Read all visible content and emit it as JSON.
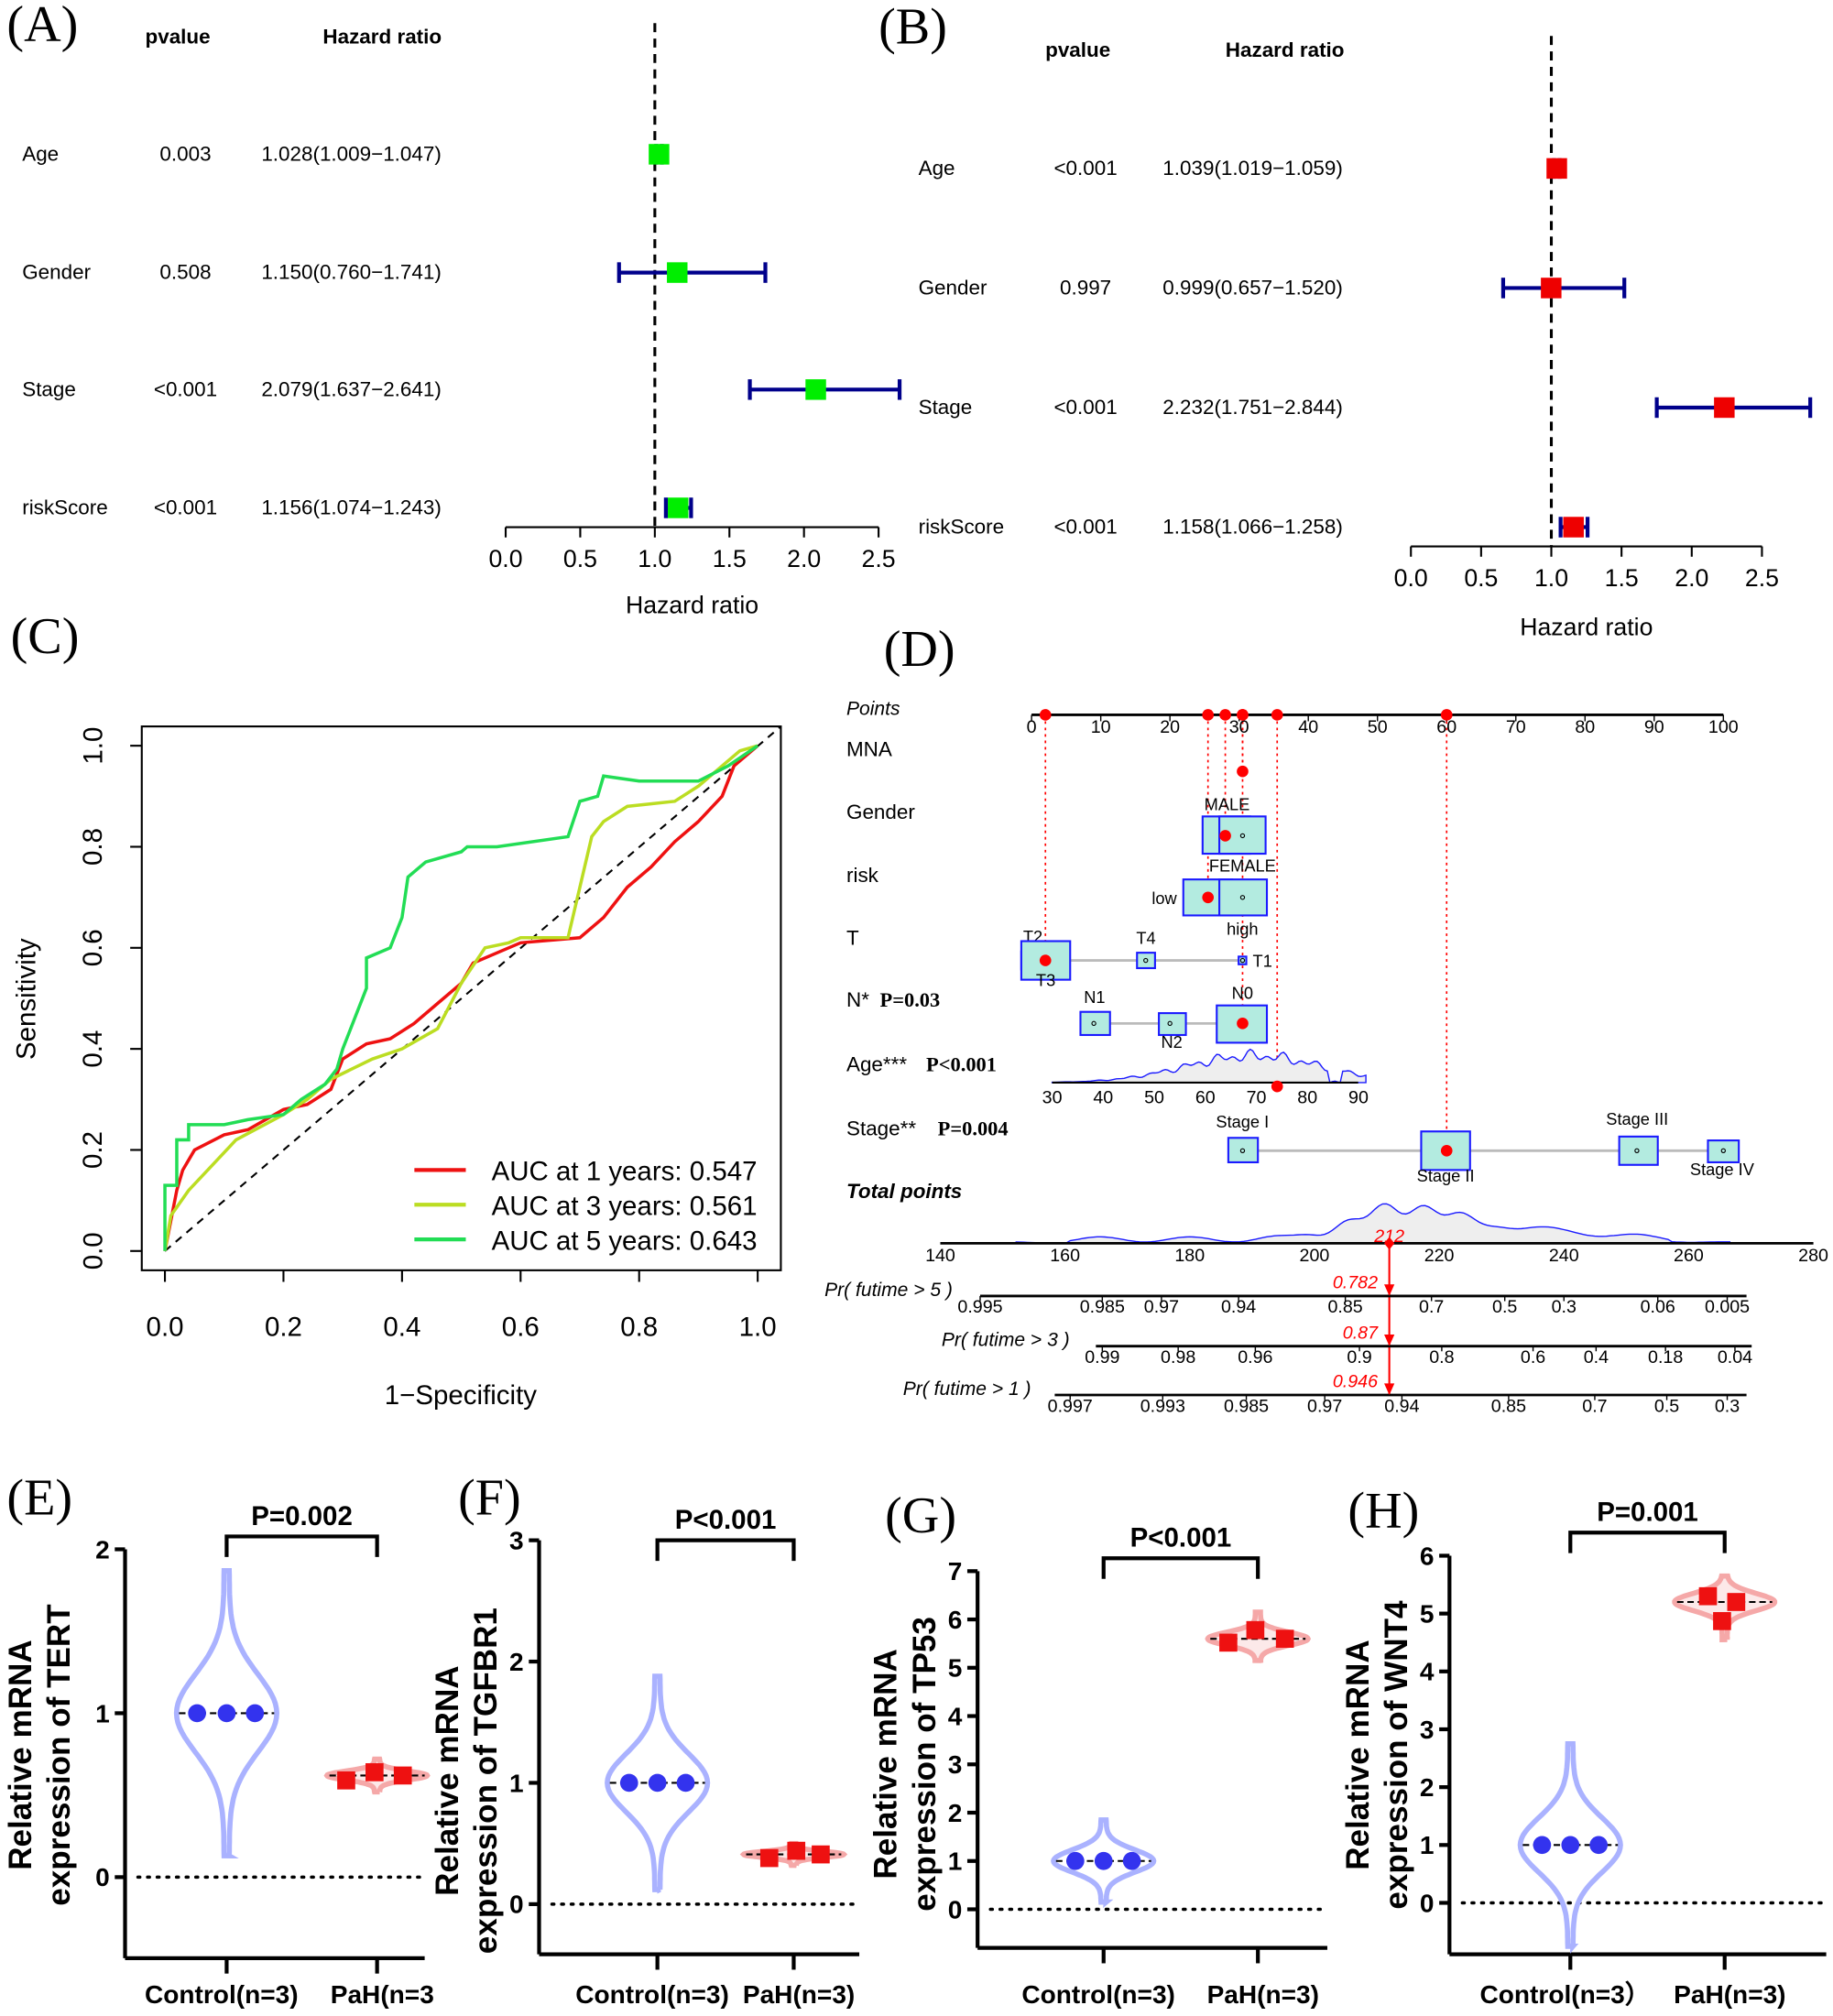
{
  "chart_data": [
    {
      "panel": "(A)",
      "type": "forest",
      "header": {
        "pvalue": "pvalue",
        "hr": "Hazard ratio"
      },
      "rows": [
        {
          "name": "Age",
          "pvalue": "0.003",
          "hr_text": "1.028(1.009−1.047)",
          "hr": 1.028,
          "lo": 1.009,
          "hi": 1.047
        },
        {
          "name": "Gender",
          "pvalue": "0.508",
          "hr_text": "1.150(0.760−1.741)",
          "hr": 1.15,
          "lo": 0.76,
          "hi": 1.741
        },
        {
          "name": "Stage",
          "pvalue": "<0.001",
          "hr_text": "2.079(1.637−2.641)",
          "hr": 2.079,
          "lo": 1.637,
          "hi": 2.641
        },
        {
          "name": "riskScore",
          "pvalue": "<0.001",
          "hr_text": "1.156(1.074−1.243)",
          "hr": 1.156,
          "lo": 1.074,
          "hi": 1.243
        }
      ],
      "xlabel": "Hazard ratio",
      "xticks": [
        "0.0",
        "0.5",
        "1.0",
        "1.5",
        "2.0",
        "2.5"
      ],
      "xlim": [
        0,
        2.5
      ],
      "reference": 1,
      "marker_color": "#00ee00",
      "ci_color": "#00008b"
    },
    {
      "panel": "(B)",
      "type": "forest",
      "header": {
        "pvalue": "pvalue",
        "hr": "Hazard ratio"
      },
      "rows": [
        {
          "name": "Age",
          "pvalue": "<0.001",
          "hr_text": "1.039(1.019−1.059)",
          "hr": 1.039,
          "lo": 1.019,
          "hi": 1.059
        },
        {
          "name": "Gender",
          "pvalue": "0.997",
          "hr_text": "0.999(0.657−1.520)",
          "hr": 0.999,
          "lo": 0.657,
          "hi": 1.52
        },
        {
          "name": "Stage",
          "pvalue": "<0.001",
          "hr_text": "2.232(1.751−2.844)",
          "hr": 2.232,
          "lo": 1.751,
          "hi": 2.844
        },
        {
          "name": "riskScore",
          "pvalue": "<0.001",
          "hr_text": "1.158(1.066−1.258)",
          "hr": 1.158,
          "lo": 1.066,
          "hi": 1.258
        }
      ],
      "xlabel": "Hazard ratio",
      "xticks": [
        "0.0",
        "0.5",
        "1.0",
        "1.5",
        "2.0",
        "2.5"
      ],
      "xlim": [
        0,
        2.5
      ],
      "reference": 1,
      "marker_color": "#ee0000",
      "ci_color": "#00008b"
    },
    {
      "panel": "(C)",
      "type": "line",
      "xlabel": "1−Specificity",
      "ylabel": "Sensitivity",
      "xlim": [
        0,
        1
      ],
      "ylim": [
        0,
        1
      ],
      "xticks": [
        "0.0",
        "0.2",
        "0.4",
        "0.6",
        "0.8",
        "1.0"
      ],
      "yticks": [
        "0.0",
        "0.2",
        "0.4",
        "0.6",
        "0.8",
        "1.0"
      ],
      "legend_position": "bottom-right",
      "series": [
        {
          "name": "AUC at 1 years: 0.547",
          "color": "#ee1111",
          "points": [
            [
              0,
              0
            ],
            [
              0.02,
              0.12
            ],
            [
              0.03,
              0.16
            ],
            [
              0.05,
              0.2
            ],
            [
              0.1,
              0.23
            ],
            [
              0.14,
              0.24
            ],
            [
              0.2,
              0.28
            ],
            [
              0.24,
              0.29
            ],
            [
              0.28,
              0.32
            ],
            [
              0.3,
              0.38
            ],
            [
              0.34,
              0.41
            ],
            [
              0.38,
              0.42
            ],
            [
              0.42,
              0.45
            ],
            [
              0.46,
              0.49
            ],
            [
              0.5,
              0.53
            ],
            [
              0.52,
              0.57
            ],
            [
              0.58,
              0.6
            ],
            [
              0.6,
              0.61
            ],
            [
              0.7,
              0.62
            ],
            [
              0.74,
              0.66
            ],
            [
              0.78,
              0.72
            ],
            [
              0.82,
              0.76
            ],
            [
              0.86,
              0.81
            ],
            [
              0.9,
              0.85
            ],
            [
              0.94,
              0.9
            ],
            [
              0.96,
              0.96
            ],
            [
              1,
              1
            ]
          ]
        },
        {
          "name": "AUC at 3 years: 0.561",
          "color": "#bbdd22",
          "points": [
            [
              0,
              0
            ],
            [
              0.01,
              0.07
            ],
            [
              0.04,
              0.12
            ],
            [
              0.08,
              0.17
            ],
            [
              0.12,
              0.22
            ],
            [
              0.2,
              0.27
            ],
            [
              0.24,
              0.3
            ],
            [
              0.28,
              0.34
            ],
            [
              0.35,
              0.38
            ],
            [
              0.4,
              0.4
            ],
            [
              0.46,
              0.44
            ],
            [
              0.5,
              0.53
            ],
            [
              0.54,
              0.6
            ],
            [
              0.58,
              0.61
            ],
            [
              0.6,
              0.62
            ],
            [
              0.68,
              0.62
            ],
            [
              0.7,
              0.72
            ],
            [
              0.72,
              0.82
            ],
            [
              0.74,
              0.85
            ],
            [
              0.78,
              0.88
            ],
            [
              0.86,
              0.89
            ],
            [
              0.9,
              0.92
            ],
            [
              0.94,
              0.96
            ],
            [
              0.97,
              0.99
            ],
            [
              1,
              1
            ]
          ]
        },
        {
          "name": "AUC at 5 years: 0.643",
          "color": "#22dd55",
          "points": [
            [
              0,
              0
            ],
            [
              0,
              0.13
            ],
            [
              0.02,
              0.13
            ],
            [
              0.02,
              0.22
            ],
            [
              0.04,
              0.22
            ],
            [
              0.04,
              0.25
            ],
            [
              0.1,
              0.25
            ],
            [
              0.14,
              0.26
            ],
            [
              0.2,
              0.27
            ],
            [
              0.23,
              0.3
            ],
            [
              0.27,
              0.33
            ],
            [
              0.29,
              0.36
            ],
            [
              0.3,
              0.4
            ],
            [
              0.31,
              0.43
            ],
            [
              0.32,
              0.46
            ],
            [
              0.34,
              0.52
            ],
            [
              0.34,
              0.58
            ],
            [
              0.38,
              0.6
            ],
            [
              0.4,
              0.66
            ],
            [
              0.41,
              0.74
            ],
            [
              0.44,
              0.77
            ],
            [
              0.5,
              0.79
            ],
            [
              0.51,
              0.8
            ],
            [
              0.56,
              0.8
            ],
            [
              0.68,
              0.82
            ],
            [
              0.7,
              0.89
            ],
            [
              0.73,
              0.9
            ],
            [
              0.74,
              0.94
            ],
            [
              0.8,
              0.93
            ],
            [
              0.9,
              0.93
            ],
            [
              0.95,
              0.96
            ],
            [
              1,
              1
            ]
          ]
        }
      ]
    },
    {
      "panel": "(D)",
      "type": "nomogram",
      "points_label": "Points",
      "points_ticks": [
        "0",
        "10",
        "20",
        "30",
        "40",
        "50",
        "60",
        "70",
        "80",
        "90",
        "100"
      ],
      "variables": [
        {
          "name": "MNA",
          "p": "",
          "selected_points": 30.5
        },
        {
          "name": "Gender",
          "p": "",
          "levels": [
            {
              "label": "MALE",
              "points": 28
            },
            {
              "label": "FEMALE",
              "points": 30.5
            }
          ],
          "selected": "MALE",
          "selected_points": 28
        },
        {
          "name": "risk",
          "p": "",
          "levels": [
            {
              "label": "low",
              "points": 25.5
            },
            {
              "label": "high",
              "points": 30.5
            }
          ],
          "selected": "low",
          "selected_points": 25.5
        },
        {
          "name": "T",
          "p": "",
          "levels": [
            {
              "label": "T2",
              "points": 0
            },
            {
              "label": "T3",
              "points": 2
            },
            {
              "label": "T4",
              "points": 16.5
            },
            {
              "label": "T1",
              "points": 30.5
            }
          ],
          "selected": "T3",
          "selected_points": 2
        },
        {
          "name": "N*",
          "p": "P=0.03",
          "levels": [
            {
              "label": "N1",
              "points": 9
            },
            {
              "label": "N2",
              "points": 20
            },
            {
              "label": "N0",
              "points": 30.5
            }
          ],
          "selected": "N0",
          "selected_points": 30.5
        },
        {
          "name": "Age***",
          "p": "P<0.001",
          "axis_ticks": [
            "30",
            "40",
            "50",
            "60",
            "70",
            "80",
            "90"
          ],
          "selected": 74,
          "selected_points": 35.5
        },
        {
          "name": "Stage**",
          "p": "P=0.004",
          "levels": [
            {
              "label": "Stage I",
              "points": 30.5
            },
            {
              "label": "Stage II",
              "points": 60
            },
            {
              "label": "Stage III",
              "points": 87.5
            },
            {
              "label": "Stage IV",
              "points": 100
            }
          ],
          "selected": "Stage II",
          "selected_points": 60
        }
      ],
      "total_label": "Total points",
      "total_ticks": [
        "140",
        "160",
        "180",
        "200",
        "220",
        "240",
        "260",
        "280"
      ],
      "total_range": [
        140,
        280
      ],
      "total_value": "212",
      "probabilities": [
        {
          "label": "Pr( futime > 5 )",
          "value": "0.782",
          "ticks": [
            "0.995",
            "0.985",
            "0.97",
            "0.94",
            "0.85",
            "0.7",
            "0.5",
            "0.3",
            "0.06",
            "0.005"
          ]
        },
        {
          "label": "Pr( futime > 3 )",
          "value": "0.87",
          "ticks": [
            "0.99",
            "0.98",
            "0.96",
            "0.9",
            "0.8",
            "0.6",
            "0.4",
            "0.18",
            "0.04"
          ]
        },
        {
          "label": "Pr( futime > 1 )",
          "value": "0.946",
          "ticks": [
            "0.997",
            "0.993",
            "0.985",
            "0.97",
            "0.94",
            "0.85",
            "0.7",
            "0.5",
            "0.3"
          ]
        }
      ],
      "box_color": "#b3ebe0",
      "box_border": "#1a1aff",
      "highlight_color": "#ff0000"
    },
    {
      "panel": "(E)",
      "type": "violin",
      "ylabel": [
        "Relative mRNA",
        "expression of TERT"
      ],
      "yticks": [
        "0",
        "1",
        "2"
      ],
      "ylim": [
        0,
        2
      ],
      "categories": [
        "Control(n=3)",
        "PaH(n=3"
      ],
      "pvalue": "P=0.002",
      "groups": [
        {
          "values": [
            1,
            1,
            1
          ],
          "mean": 1,
          "range": [
            0.13,
            1.87
          ],
          "color": "#3333ee",
          "marker": "circle"
        },
        {
          "values": [
            0.59,
            0.64,
            0.62
          ],
          "mean": 0.62,
          "range": [
            0.52,
            0.72
          ],
          "color": "#ee1111",
          "marker": "square"
        }
      ]
    },
    {
      "panel": "(F)",
      "type": "violin",
      "ylabel": [
        "Relative mRNA",
        "expression of TGFBR1"
      ],
      "yticks": [
        "0",
        "1",
        "2",
        "3"
      ],
      "ylim": [
        0,
        3
      ],
      "categories": [
        "Control(n=3)",
        "PaH(n=3)"
      ],
      "pvalue": "P<0.001",
      "groups": [
        {
          "values": [
            1,
            1,
            1
          ],
          "mean": 1,
          "range": [
            0.12,
            1.88
          ],
          "color": "#3333ee",
          "marker": "circle"
        },
        {
          "values": [
            0.38,
            0.44,
            0.41
          ],
          "mean": 0.41,
          "range": [
            0.32,
            0.5
          ],
          "color": "#ee1111",
          "marker": "square"
        }
      ]
    },
    {
      "panel": "(G)",
      "type": "violin",
      "ylabel": [
        "Relative mRNA",
        "expression of TP53"
      ],
      "yticks": [
        "0",
        "1",
        "2",
        "3",
        "4",
        "5",
        "6",
        "7"
      ],
      "ylim": [
        0,
        7
      ],
      "categories": [
        "Control(n=3)",
        "PaH(n=3)"
      ],
      "pvalue": "P<0.001",
      "groups": [
        {
          "values": [
            1,
            1,
            1
          ],
          "mean": 1,
          "range": [
            0.15,
            1.85
          ],
          "color": "#3333ee",
          "marker": "circle"
        },
        {
          "values": [
            5.52,
            5.78,
            5.6
          ],
          "mean": 5.6,
          "range": [
            5.15,
            6.15
          ],
          "color": "#ee1111",
          "marker": "square"
        }
      ]
    },
    {
      "panel": "(H)",
      "type": "violin",
      "ylabel": [
        "Relative mRNA",
        "expression of WNT4"
      ],
      "yticks": [
        "0",
        "1",
        "2",
        "3",
        "4",
        "5",
        "6"
      ],
      "ylim": [
        0,
        6
      ],
      "categories": [
        "Control(n=3）",
        "PaH(n=3)"
      ],
      "pvalue": "P=0.001",
      "groups": [
        {
          "values": [
            1,
            1,
            1
          ],
          "mean": 1,
          "range": [
            -0.75,
            2.75
          ],
          "color": "#3333ee",
          "marker": "circle"
        },
        {
          "values": [
            5.3,
            4.87,
            5.2
          ],
          "mean": 5.2,
          "range": [
            4.55,
            5.65
          ],
          "color": "#ee1111",
          "marker": "square"
        }
      ]
    }
  ]
}
